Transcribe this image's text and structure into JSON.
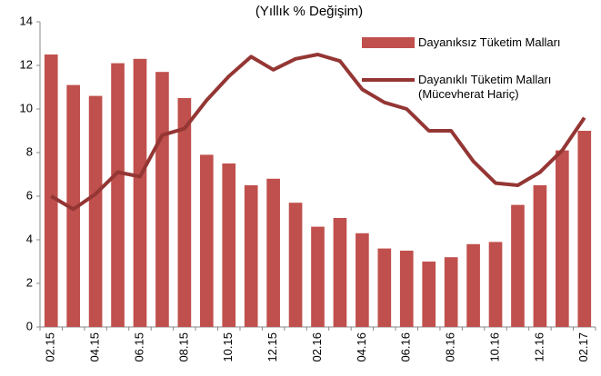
{
  "chart_data": {
    "type": "bar_line",
    "title": "(Yıllık % Değişim)",
    "categories": [
      "02.15",
      null,
      "04.15",
      null,
      "06.15",
      null,
      "08.15",
      null,
      "10.15",
      null,
      "12.15",
      null,
      "02.16",
      null,
      "04.16",
      null,
      "06.16",
      null,
      "08.16",
      null,
      "10.16",
      null,
      "12.16",
      null,
      "02.17"
    ],
    "series": [
      {
        "name": "Dayanıksız Tüketim Malları",
        "type": "bar",
        "color": "#c0504d",
        "values": [
          12.5,
          11.1,
          10.6,
          12.1,
          12.3,
          11.7,
          10.5,
          7.9,
          7.5,
          6.5,
          6.8,
          5.7,
          4.6,
          5.0,
          4.3,
          3.6,
          3.5,
          3.0,
          3.2,
          3.8,
          3.9,
          5.6,
          6.5,
          8.1,
          9.0
        ]
      },
      {
        "name": "Dayanıklı Tüketim Malları (Mücevherat Hariç)",
        "type": "line",
        "color": "#943634",
        "values": [
          6.0,
          5.4,
          6.1,
          7.1,
          6.9,
          8.8,
          9.1,
          10.4,
          11.5,
          12.4,
          11.8,
          12.3,
          12.5,
          12.2,
          10.9,
          10.3,
          10.0,
          9.0,
          9.0,
          7.6,
          6.6,
          6.5,
          7.1,
          8.1,
          9.6
        ]
      }
    ],
    "ylim": [
      0,
      14
    ],
    "yticks": [
      0,
      2,
      4,
      6,
      8,
      10,
      12,
      14
    ],
    "grid": false,
    "legend": "top-right"
  }
}
